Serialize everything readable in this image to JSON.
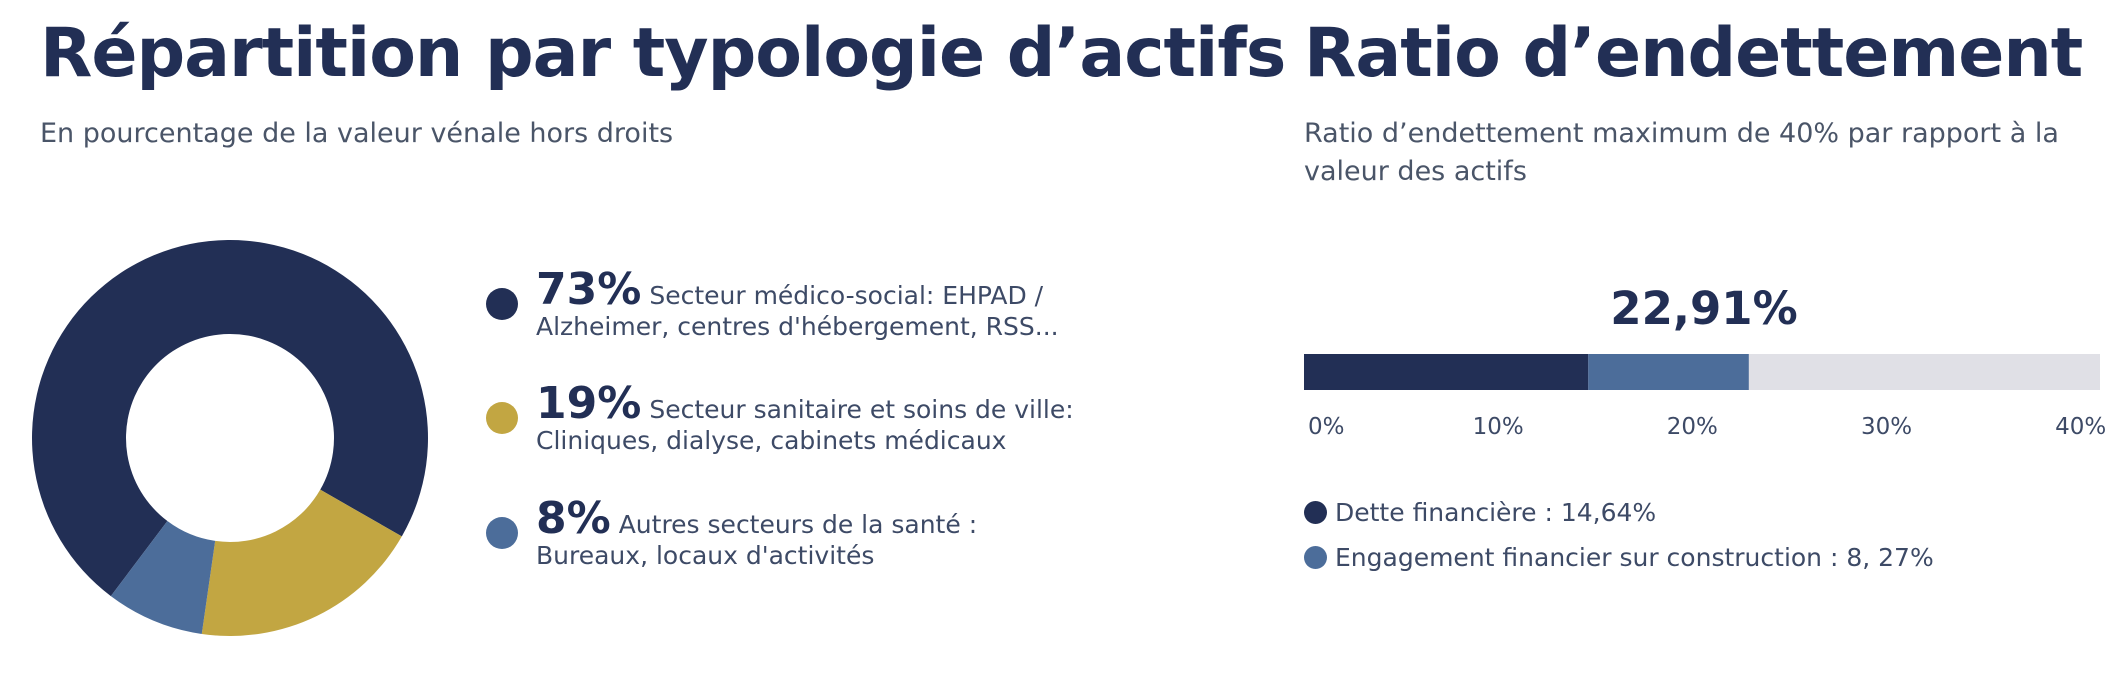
{
  "colors": {
    "navy": "#222f55",
    "gold": "#c2a642",
    "steel": "#4c6d9a",
    "track": "#e0e0e6"
  },
  "chart_data": [
    {
      "type": "pie",
      "variant": "donut",
      "title": "Répartition par typologie d’actifs",
      "subtitle": "En pourcentage de la valeur vénale hors droits",
      "slices": [
        {
          "pct_label": "73%",
          "value": 73,
          "label": "Secteur médico-social: EHPAD / Alzheimer, centres d'hébergement, RSS...",
          "color": "#222f55"
        },
        {
          "pct_label": "19%",
          "value": 19,
          "label": "Secteur sanitaire et soins de ville: Cliniques, dialyse, cabinets médicaux",
          "color": "#c2a642"
        },
        {
          "pct_label": "8%",
          "value": 8,
          "label": "Autres secteurs de la santé : Bureaux, locaux d'activités",
          "color": "#4c6d9a"
        }
      ]
    },
    {
      "type": "bar",
      "variant": "stacked-horizontal",
      "title": "Ratio d’endettement",
      "subtitle": "Ratio d’endettement maximum de 40% par rapport à la valeur des actifs",
      "total_label": "22,91%",
      "xlim": [
        0,
        41
      ],
      "ticks": [
        {
          "value": 0,
          "label": "0%"
        },
        {
          "value": 10,
          "label": "10%"
        },
        {
          "value": 20,
          "label": "20%"
        },
        {
          "value": 30,
          "label": "30%"
        },
        {
          "value": 40,
          "label": "40%"
        }
      ],
      "series": [
        {
          "name": "Dette financière : 14,64%",
          "value": 14.64,
          "color": "#222f55"
        },
        {
          "name": "Engagement financier sur construction : 8, 27%",
          "value": 8.27,
          "color": "#4c6d9a"
        }
      ],
      "track_color": "#e0e0e6"
    }
  ]
}
